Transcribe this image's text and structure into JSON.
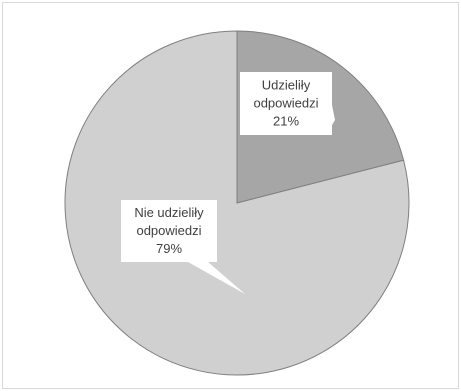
{
  "chart_data": {
    "type": "pie",
    "title": "",
    "slices": [
      {
        "label_lines": [
          "Udzieliły",
          "odpowiedzi"
        ],
        "value": 21,
        "value_label": "21%",
        "color": "#a6a6a6"
      },
      {
        "label_lines": [
          "Nie udzieliły",
          "odpowiedzi"
        ],
        "value": 79,
        "value_label": "79%",
        "color": "#d0d0d0"
      }
    ],
    "start_angle": 0,
    "direction": "clockwise",
    "legend": "none",
    "slice_border_color": "#7f7f7f"
  }
}
